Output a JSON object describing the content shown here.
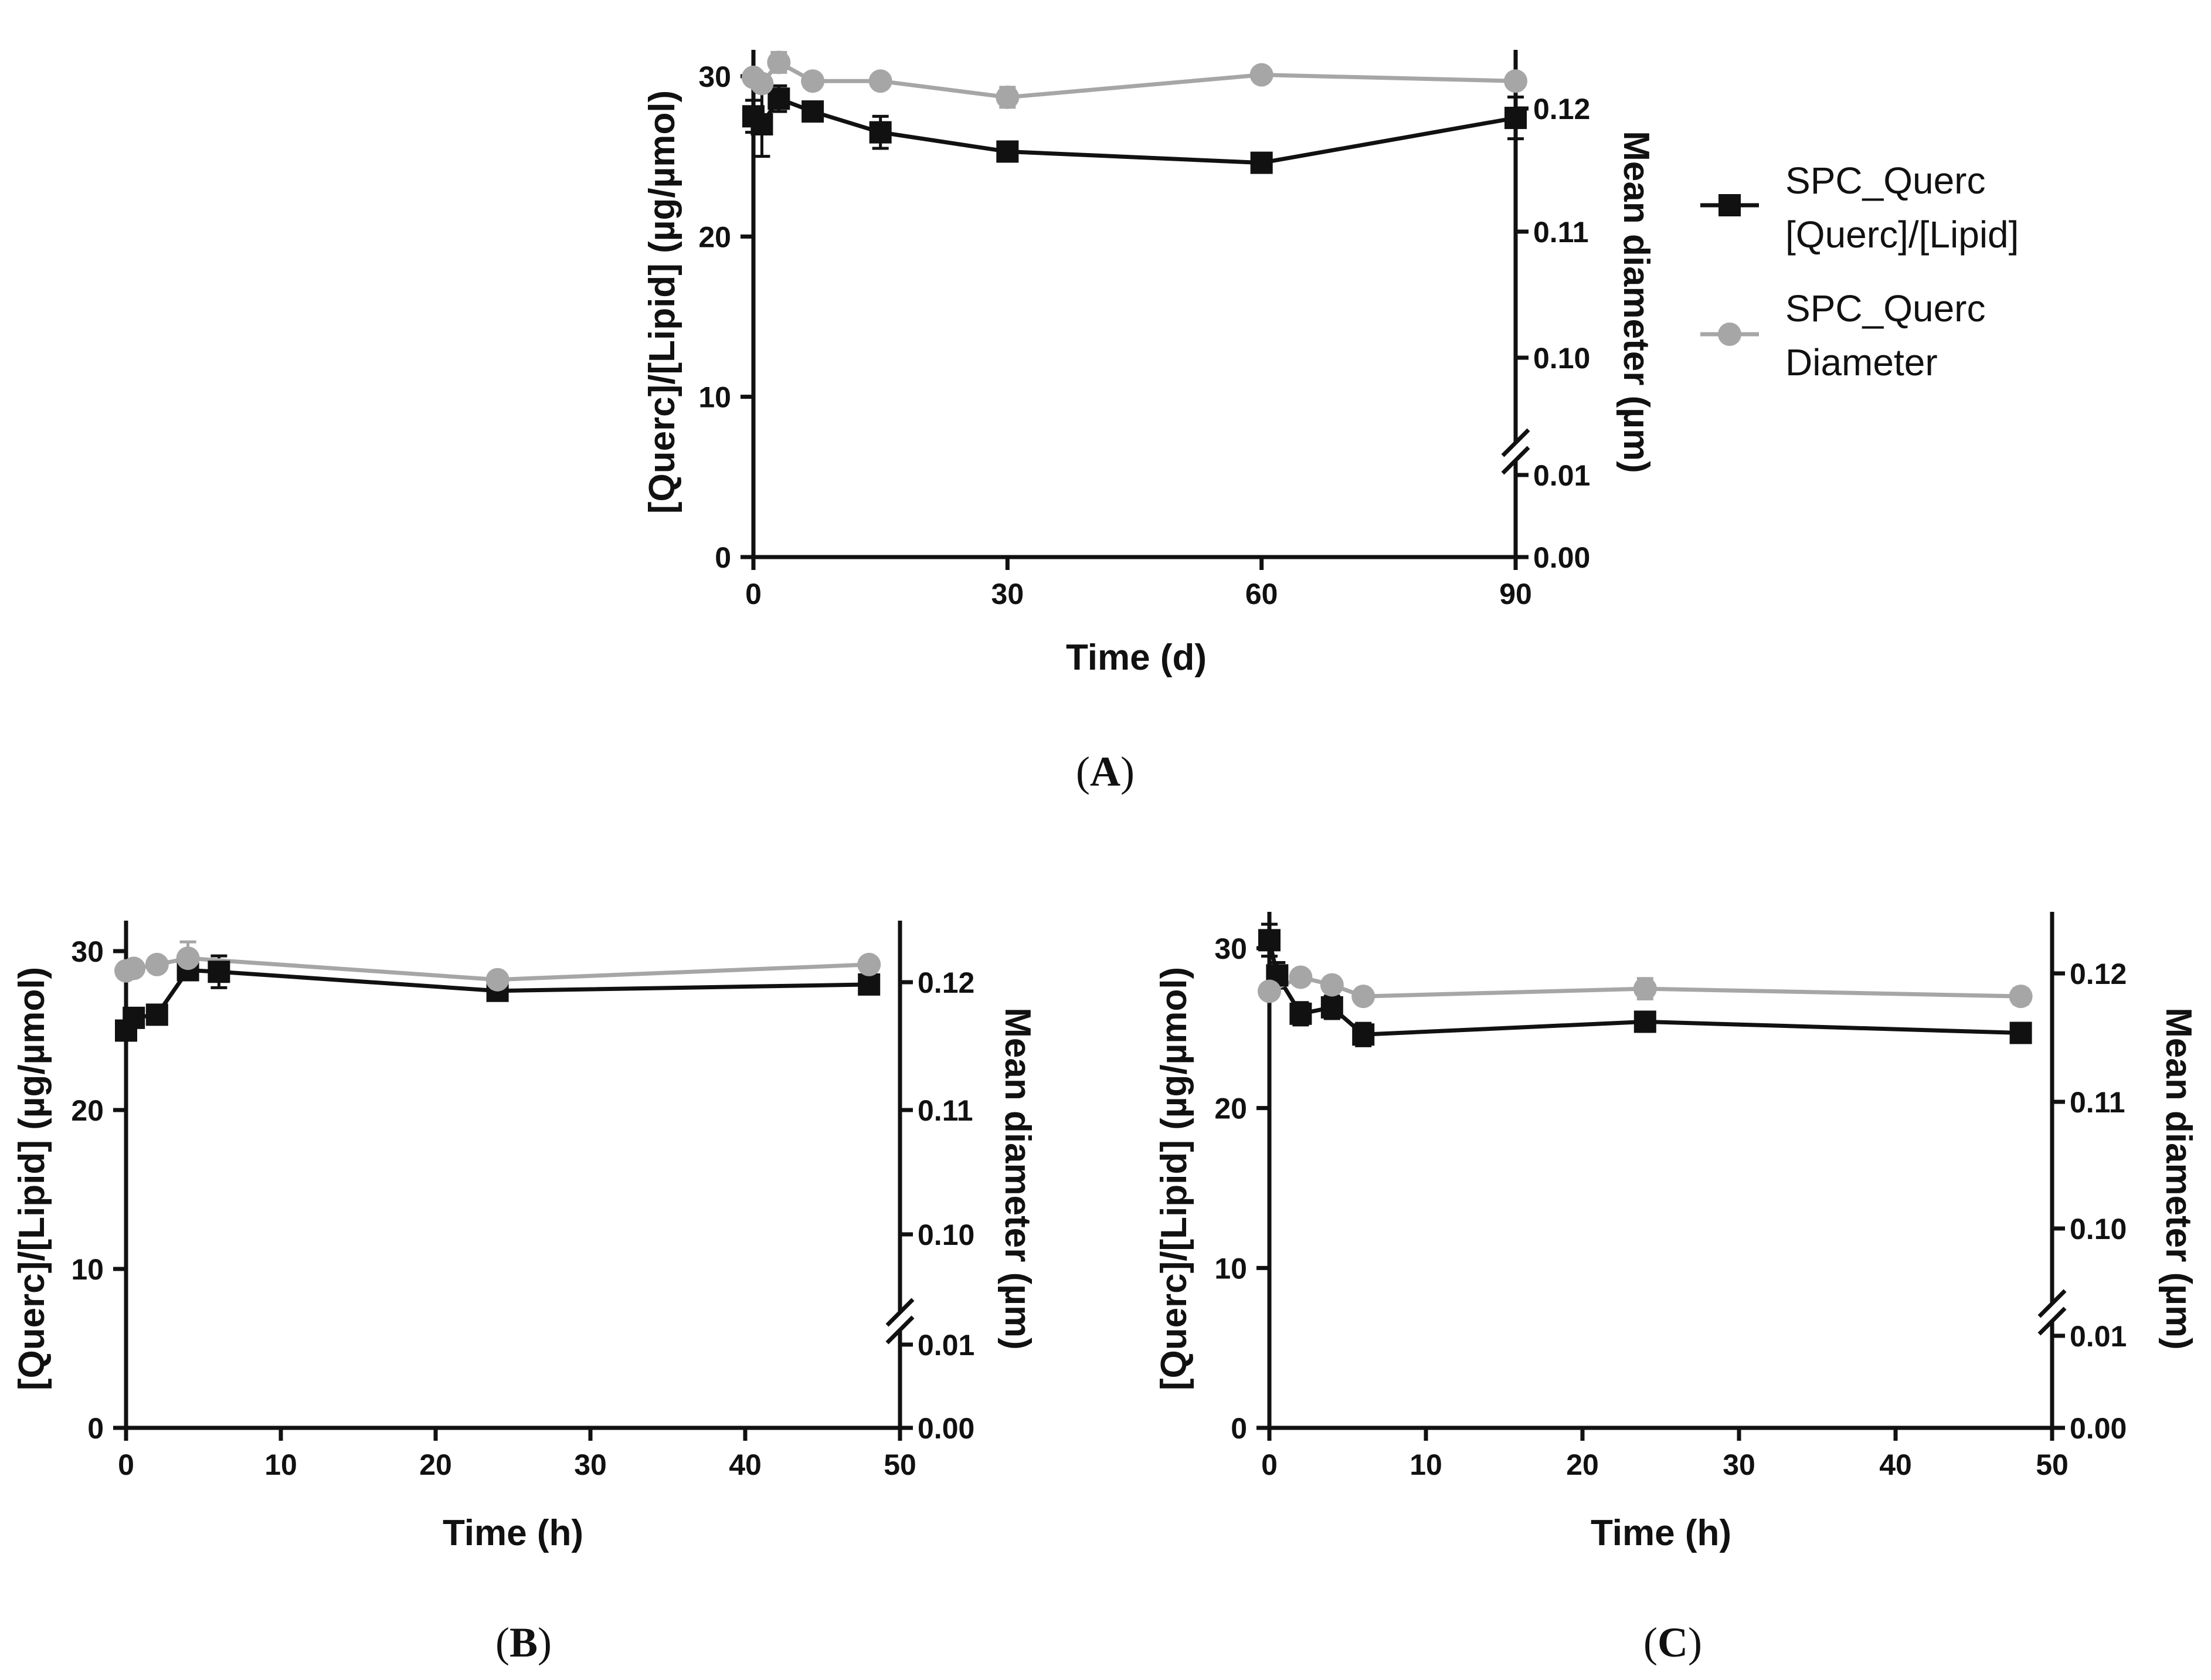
{
  "chart_data": [
    {
      "type": "line",
      "panel_label": "A",
      "xlabel": "Time (d)",
      "ylabel": "[Querc]/[Lipid] (µg/µmol)",
      "y2label": "Mean diameter (µm)",
      "xlim": [
        0,
        90
      ],
      "ylim": [
        0,
        32
      ],
      "x_ticks": [
        "0",
        "30",
        "60",
        "90"
      ],
      "y_ticks": [
        "0",
        "10",
        "20",
        "30"
      ],
      "y2_ticks": [
        "0.00",
        "0.01",
        "0.10",
        "0.11",
        "0.12"
      ],
      "y2_axis_break": true,
      "series": [
        {
          "name": "SPC_Querc [Querc]/[Lipid]",
          "axis": "left",
          "marker": "square",
          "color": "#111111",
          "x": [
            0,
            1,
            3,
            7,
            15,
            30,
            60,
            90
          ],
          "y": [
            27.5,
            27.0,
            28.6,
            27.8,
            26.5,
            25.3,
            24.6,
            27.4
          ],
          "err": [
            1.0,
            2.0,
            0.8,
            0.5,
            1.0,
            0.5,
            0.5,
            1.3
          ]
        },
        {
          "name": "SPC_Querc Diameter",
          "axis": "right",
          "marker": "circle",
          "color": "#a6a6a6",
          "x": [
            0,
            1,
            3,
            7,
            15,
            30,
            60,
            90
          ],
          "y": [
            0.1225,
            0.122,
            0.1237,
            0.1222,
            0.1222,
            0.1209,
            0.1227,
            0.1222
          ],
          "err": [
            0,
            0,
            0.0008,
            0,
            0,
            0.0008,
            0,
            0
          ]
        }
      ]
    },
    {
      "type": "line",
      "panel_label": "B",
      "xlabel": "Time (h)",
      "ylabel": "[Querc]/[Lipid] (µg/µmol)",
      "y2label": "Mean diameter (µm)",
      "xlim": [
        0,
        50
      ],
      "ylim": [
        0,
        32
      ],
      "x_ticks": [
        "0",
        "10",
        "20",
        "30",
        "40",
        "50"
      ],
      "y_ticks": [
        "0",
        "10",
        "20",
        "30"
      ],
      "y2_ticks": [
        "0.00",
        "0.01",
        "0.10",
        "0.11",
        "0.12"
      ],
      "y2_axis_break": true,
      "series": [
        {
          "name": "SPC_Querc [Querc]/[Lipid]",
          "axis": "left",
          "marker": "square",
          "color": "#111111",
          "x": [
            0,
            0.5,
            2,
            4,
            6,
            24,
            48
          ],
          "y": [
            25.0,
            25.8,
            26.0,
            28.8,
            28.7,
            27.5,
            27.9
          ],
          "err": [
            0.4,
            0.5,
            0.4,
            0.6,
            1.0,
            0.4,
            0.4
          ]
        },
        {
          "name": "SPC_Querc Diameter",
          "axis": "right",
          "marker": "circle",
          "color": "#a6a6a6",
          "x": [
            0,
            0.5,
            2,
            4,
            24,
            48
          ],
          "y": [
            0.1209,
            0.1211,
            0.1214,
            0.1219,
            0.1202,
            0.1214
          ],
          "err": [
            0,
            0,
            0,
            0.0013,
            0,
            0
          ]
        }
      ]
    },
    {
      "type": "line",
      "panel_label": "C",
      "xlabel": "Time (h)",
      "ylabel": "[Querc]/[Lipid] (µg/µmol)",
      "y2label": "Mean diameter (µm)",
      "xlim": [
        0,
        50
      ],
      "ylim": [
        0,
        32
      ],
      "x_ticks": [
        "0",
        "10",
        "20",
        "30",
        "40",
        "50"
      ],
      "y_ticks": [
        "0",
        "10",
        "20",
        "30"
      ],
      "y2_ticks": [
        "0.00",
        "0.01",
        "0.10",
        "0.11",
        "0.12"
      ],
      "y2_axis_break": true,
      "series": [
        {
          "name": "SPC_Querc [Querc]/[Lipid]",
          "axis": "left",
          "marker": "square",
          "color": "#111111",
          "x": [
            0,
            0.5,
            2,
            4,
            6,
            24,
            48
          ],
          "y": [
            30.5,
            28.3,
            25.9,
            26.3,
            24.6,
            25.4,
            24.7
          ],
          "err": [
            1.0,
            0.8,
            0.7,
            0.7,
            0.7,
            0.6,
            0.6
          ]
        },
        {
          "name": "SPC_Querc Diameter",
          "axis": "right",
          "marker": "circle",
          "color": "#a6a6a6",
          "x": [
            0,
            2,
            4,
            6,
            24,
            48
          ],
          "y": [
            0.1186,
            0.1197,
            0.1191,
            0.1182,
            0.1188,
            0.1182
          ],
          "err": [
            0,
            0,
            0,
            0,
            0.0008,
            0.0006
          ]
        }
      ]
    }
  ],
  "legend": {
    "items": [
      {
        "line1": "SPC_Querc",
        "line2": "[Querc]/[Lipid]",
        "marker": "square",
        "color": "#111111"
      },
      {
        "line1": "SPC_Querc",
        "line2": "Diameter",
        "marker": "circle",
        "color": "#a6a6a6"
      }
    ]
  },
  "panel_labels": [
    "A",
    "B",
    "C"
  ]
}
